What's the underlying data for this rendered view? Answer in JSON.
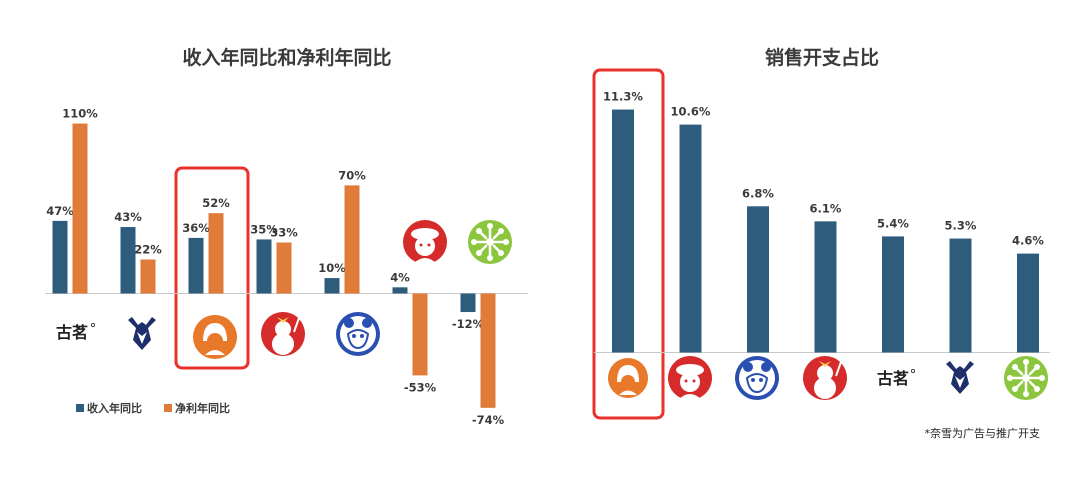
{
  "chart_data": [
    {
      "type": "bar",
      "title": "收入年同比和净利年同比",
      "categories": [
        "古茗",
        "沪上阿姨",
        "茶百道",
        "蜜雪冰城",
        "霸王茶姬",
        "奈雪的茶",
        "七分甜"
      ],
      "series": [
        {
          "name": "收入年同比",
          "color": "#2e5c7d",
          "values": [
            47,
            43,
            36,
            35,
            10,
            4,
            -12
          ]
        },
        {
          "name": "净利年同比",
          "color": "#e07b39",
          "values": [
            110,
            22,
            52,
            33,
            70,
            -53,
            -74
          ]
        }
      ],
      "value_labels": {
        "revenue": [
          "47%",
          "43%",
          "36%",
          "35%",
          "10%",
          "4%",
          "-12%"
        ],
        "profit": [
          "110%",
          "22%",
          "52%",
          "33%",
          "70%",
          "-53%",
          "-74%"
        ]
      },
      "ylim": [
        -80,
        115
      ],
      "legend": "bottom-left",
      "highlight_index": 2
    },
    {
      "type": "bar",
      "title": "销售开支占比",
      "categories": [
        "茶百道",
        "奈雪的茶",
        "霸王茶姬",
        "蜜雪冰城",
        "古茗",
        "沪上阿姨",
        "七分甜"
      ],
      "series": [
        {
          "color": "#2e5c7d",
          "values": [
            11.3,
            10.6,
            6.8,
            6.1,
            5.4,
            5.3,
            4.6
          ]
        }
      ],
      "value_labels": [
        "11.3%",
        "10.6%",
        "6.8%",
        "6.1%",
        "5.4%",
        "5.3%",
        "4.6%"
      ],
      "ylim": [
        0,
        12
      ],
      "highlight_index": 0
    }
  ],
  "legend": {
    "revenue_label": "收入年同比",
    "profit_label": "净利年同比"
  },
  "logos": {
    "guming_text": "古茗"
  },
  "footnote": "*奈雪为广告与推广开支",
  "colors": {
    "revenue": "#2e5c7d",
    "profit": "#e07b39",
    "highlight": "#e8322b",
    "axis": "#c8c8c8"
  }
}
